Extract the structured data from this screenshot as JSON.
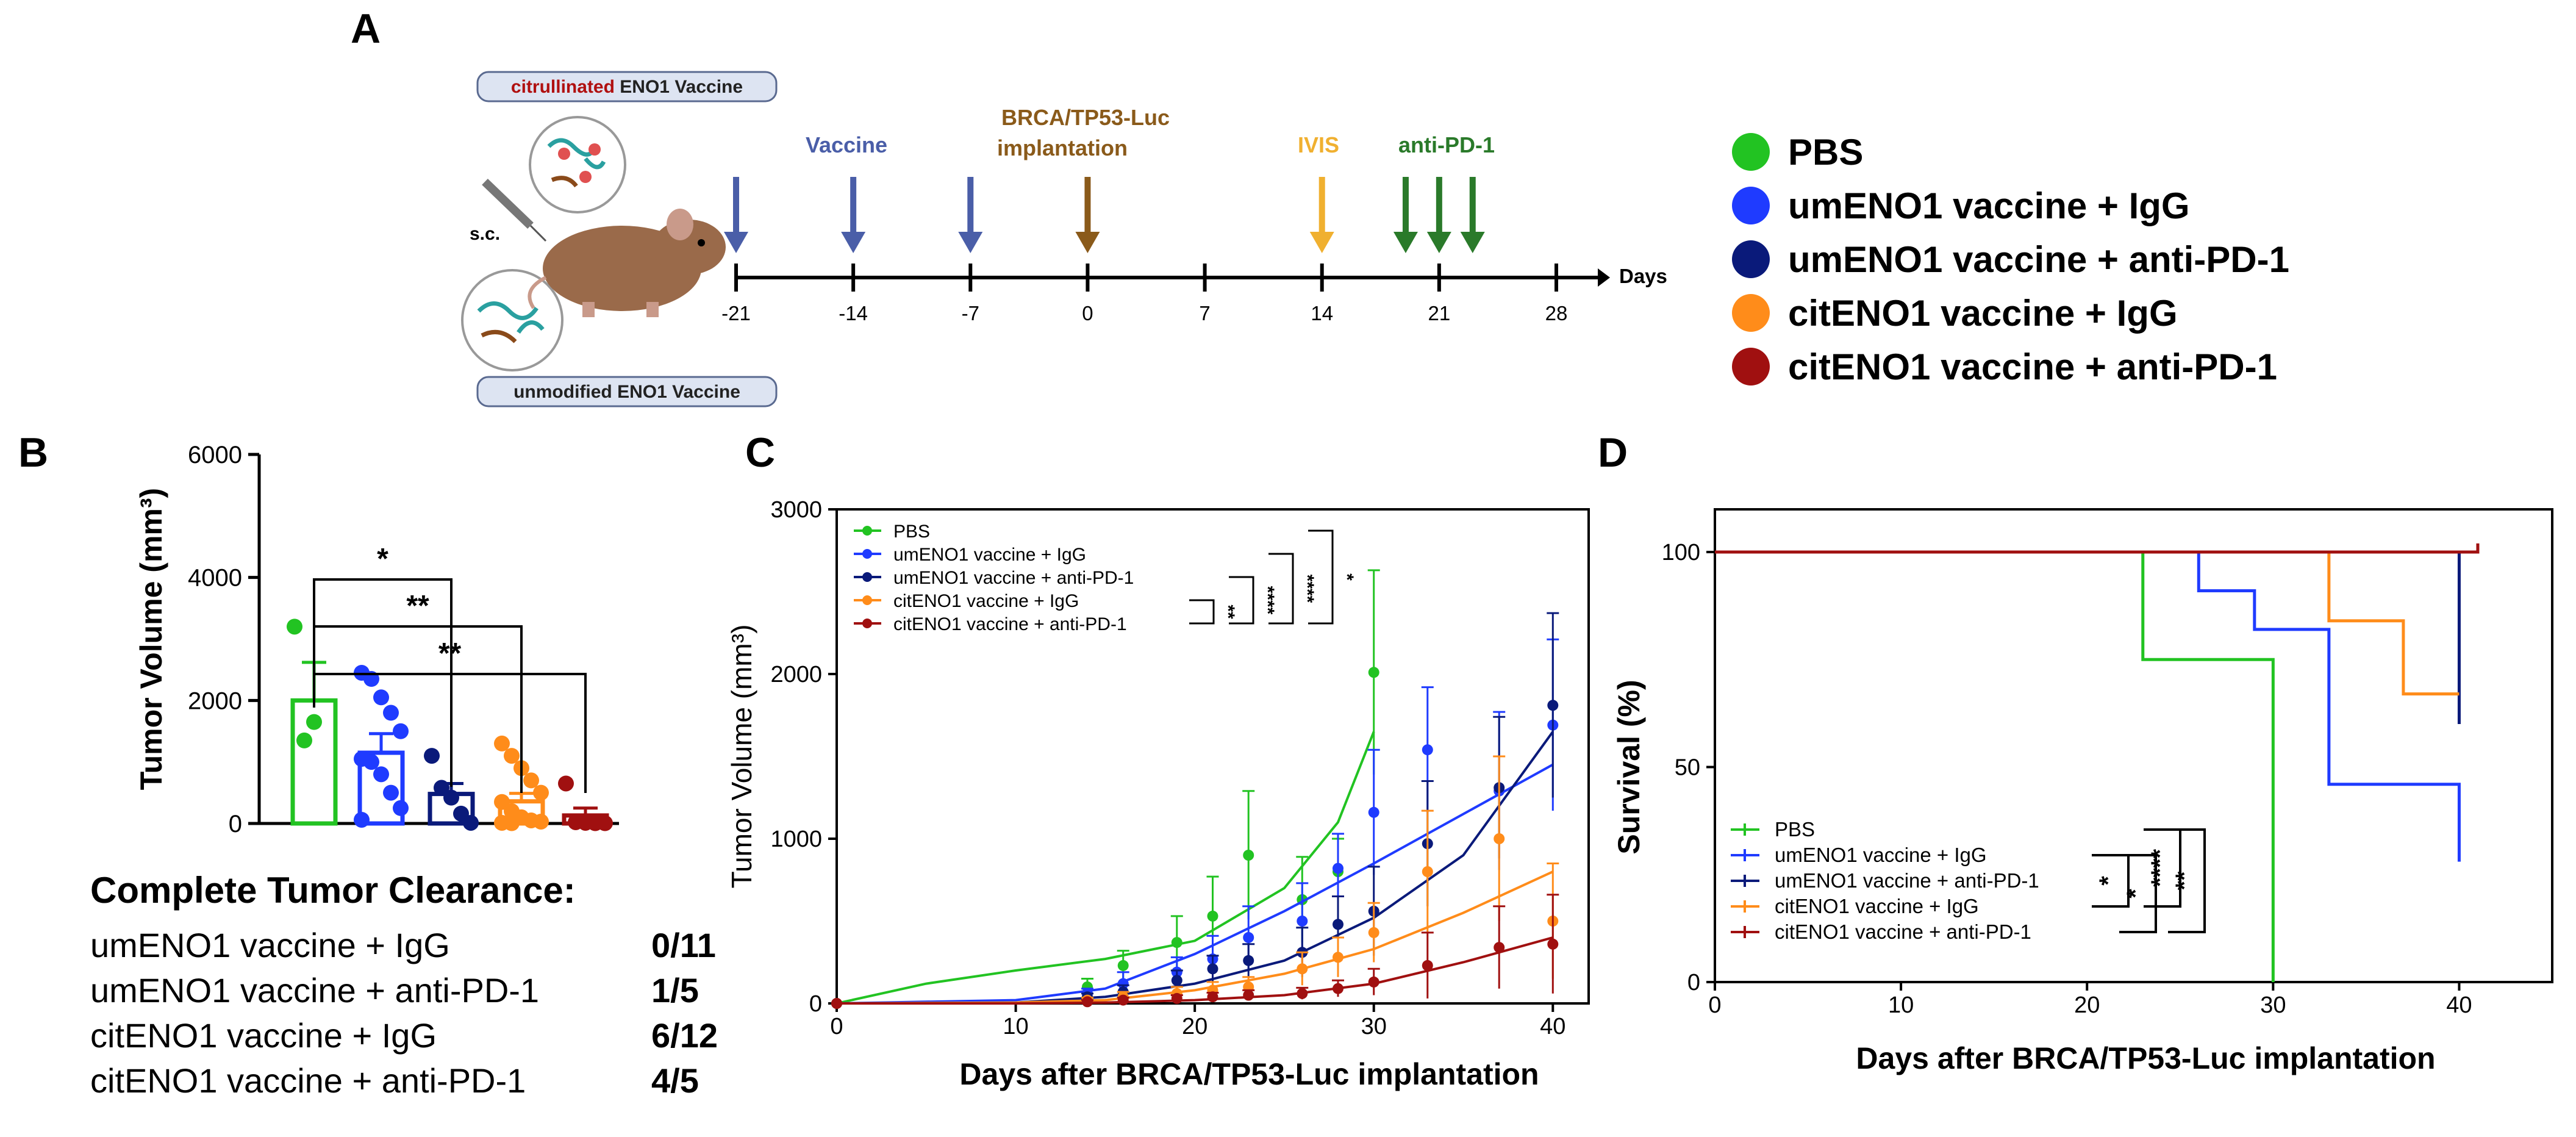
{
  "panel_labels": {
    "a": "A",
    "b": "B",
    "c": "C",
    "d": "D"
  },
  "panel_a": {
    "badge_top_prefix": "citrullinated",
    "badge_top_suffix": " ENO1 Vaccine",
    "badge_bottom": "unmodified ENO1 Vaccine",
    "route": "s.c.",
    "event_vaccine": "Vaccine",
    "event_implant_line1": "BRCA/TP53-Luc",
    "event_implant_line2": "implantation",
    "event_ivis": "IVIS",
    "event_antipd1": "anti-PD-1",
    "axis_unit": "Days",
    "ticks": [
      "-21",
      "-14",
      "-7",
      "0",
      "7",
      "14",
      "21",
      "28"
    ],
    "legend": [
      {
        "label": "PBS",
        "color": "#22c322"
      },
      {
        "label": "umENO1 vaccine + IgG",
        "color": "#1f3bff"
      },
      {
        "label": "umENO1 vaccine + anti-PD-1",
        "color": "#0a1a7a"
      },
      {
        "label": "citENO1 vaccine + IgG",
        "color": "#ff8c1a"
      },
      {
        "label": "citENO1 vaccine + anti-PD-1",
        "color": "#a01010"
      }
    ]
  },
  "clearance": {
    "title": "Complete Tumor Clearance:",
    "rows": [
      {
        "label": "umENO1 vaccine + IgG",
        "value": "0/11"
      },
      {
        "label": "umENO1 vaccine + anti-PD-1",
        "value": "1/5"
      },
      {
        "label": "citENO1 vaccine + IgG",
        "value": "6/12"
      },
      {
        "label": "citENO1 vaccine + anti-PD-1",
        "value": "4/5"
      }
    ]
  },
  "chart_data": [
    {
      "id": "B",
      "type": "bar",
      "ylabel": "Tumor Volume (mm³)",
      "ylim": [
        0,
        6000
      ],
      "yticks": [
        "0",
        "2000",
        "4000",
        "6000"
      ],
      "series": [
        {
          "name": "PBS",
          "color": "#22c322",
          "mean": 2000,
          "sem": 620,
          "points": [
            3200,
            1350,
            1650
          ]
        },
        {
          "name": "umENO1 vaccine + IgG",
          "color": "#1f3bff",
          "mean": 1150,
          "sem": 310,
          "points": [
            2450,
            2350,
            2050,
            1800,
            1500,
            1050,
            1000,
            800,
            500,
            250,
            60
          ]
        },
        {
          "name": "umENO1 vaccine + anti-PD-1",
          "color": "#0a1a7a",
          "mean": 480,
          "sem": 170,
          "points": [
            1100,
            580,
            420,
            160,
            10
          ]
        },
        {
          "name": "citENO1 vaccine + IgG",
          "color": "#ff8c1a",
          "mean": 360,
          "sem": 130,
          "points": [
            1300,
            1100,
            900,
            700,
            500,
            350,
            200,
            100,
            50,
            30,
            10,
            5
          ]
        },
        {
          "name": "citENO1 vaccine + anti-PD-1",
          "color": "#a01010",
          "mean": 130,
          "sem": 120,
          "points": [
            650,
            20,
            10,
            5,
            5
          ]
        }
      ],
      "significance": [
        "*",
        "**",
        "**"
      ]
    },
    {
      "id": "C",
      "type": "line",
      "xlabel": "Days after BRCA/TP53-Luc implantation",
      "ylabel": "Tumor Volume (mm³)",
      "xlim": [
        0,
        42
      ],
      "ylim": [
        0,
        3000
      ],
      "xticks": [
        "0",
        "10",
        "20",
        "30",
        "40"
      ],
      "yticks": [
        "0",
        "1000",
        "2000",
        "3000"
      ],
      "significance": [
        "**",
        "****",
        "****",
        "*"
      ],
      "series": [
        {
          "name": "PBS",
          "color": "#22c322",
          "x": [
            0,
            14,
            16,
            19,
            21,
            23,
            26,
            28,
            30
          ],
          "y": [
            0,
            100,
            230,
            370,
            530,
            900,
            630,
            800,
            2010
          ],
          "err": [
            0,
            50,
            90,
            160,
            240,
            390,
            260,
            200,
            620
          ],
          "fit": [
            [
              0,
              0
            ],
            [
              5,
              120
            ],
            [
              10,
              200
            ],
            [
              15,
              270
            ],
            [
              20,
              380
            ],
            [
              25,
              700
            ],
            [
              28,
              1100
            ],
            [
              30,
              1650
            ]
          ]
        },
        {
          "name": "umENO1 vaccine + IgG",
          "color": "#1f3bff",
          "x": [
            0,
            14,
            16,
            19,
            21,
            23,
            26,
            28,
            30,
            33,
            37,
            40
          ],
          "y": [
            0,
            60,
            120,
            190,
            270,
            400,
            500,
            820,
            1160,
            1540,
            1290,
            1690
          ],
          "err": [
            0,
            30,
            70,
            90,
            140,
            190,
            230,
            210,
            380,
            380,
            480,
            520
          ],
          "fit": [
            [
              0,
              0
            ],
            [
              10,
              20
            ],
            [
              15,
              90
            ],
            [
              20,
              300
            ],
            [
              25,
              560
            ],
            [
              30,
              850
            ],
            [
              35,
              1150
            ],
            [
              40,
              1450
            ]
          ]
        },
        {
          "name": "umENO1 vaccine + anti-PD-1",
          "color": "#0a1a7a",
          "x": [
            0,
            14,
            16,
            19,
            21,
            23,
            26,
            28,
            30,
            33,
            37,
            40
          ],
          "y": [
            0,
            40,
            70,
            140,
            210,
            260,
            310,
            480,
            560,
            970,
            1310,
            1810
          ],
          "err": [
            0,
            20,
            40,
            60,
            80,
            100,
            150,
            170,
            270,
            380,
            430,
            560
          ],
          "fit": [
            [
              0,
              0
            ],
            [
              10,
              5
            ],
            [
              15,
              40
            ],
            [
              20,
              120
            ],
            [
              25,
              260
            ],
            [
              30,
              520
            ],
            [
              35,
              900
            ],
            [
              40,
              1650
            ]
          ]
        },
        {
          "name": "citENO1 vaccine + IgG",
          "color": "#ff8c1a",
          "x": [
            0,
            14,
            16,
            19,
            21,
            23,
            26,
            28,
            30,
            33,
            37,
            40
          ],
          "y": [
            0,
            20,
            40,
            60,
            80,
            100,
            210,
            280,
            430,
            800,
            1000,
            500
          ],
          "err": [
            0,
            15,
            30,
            40,
            50,
            60,
            100,
            120,
            180,
            370,
            500,
            350
          ],
          "fit": [
            [
              0,
              0
            ],
            [
              10,
              5
            ],
            [
              15,
              20
            ],
            [
              20,
              80
            ],
            [
              25,
              180
            ],
            [
              30,
              330
            ],
            [
              35,
              550
            ],
            [
              40,
              800
            ]
          ]
        },
        {
          "name": "citENO1 vaccine + anti-PD-1",
          "color": "#a01010",
          "x": [
            0,
            14,
            16,
            19,
            21,
            23,
            26,
            28,
            30,
            33,
            37,
            40
          ],
          "y": [
            0,
            10,
            20,
            30,
            40,
            50,
            60,
            90,
            130,
            230,
            340,
            360
          ],
          "err": [
            0,
            10,
            15,
            20,
            25,
            30,
            35,
            50,
            80,
            200,
            250,
            300
          ],
          "fit": [
            [
              0,
              0
            ],
            [
              10,
              0
            ],
            [
              15,
              5
            ],
            [
              20,
              20
            ],
            [
              25,
              50
            ],
            [
              30,
              120
            ],
            [
              35,
              250
            ],
            [
              40,
              400
            ]
          ]
        }
      ]
    },
    {
      "id": "D",
      "type": "line",
      "xlabel": "Days after BRCA/TP53-Luc implantation",
      "ylabel": "Survival (%)",
      "xlim": [
        0,
        45
      ],
      "ylim": [
        0,
        105
      ],
      "xticks": [
        "0",
        "10",
        "20",
        "30",
        "40"
      ],
      "yticks": [
        "0",
        "50",
        "100"
      ],
      "significance": [
        "*",
        "*",
        "****",
        "**"
      ],
      "series": [
        {
          "name": "PBS",
          "color": "#22c322",
          "steps": [
            [
              0,
              100
            ],
            [
              23,
              100
            ],
            [
              23,
              75
            ],
            [
              30,
              75
            ],
            [
              30,
              0
            ]
          ]
        },
        {
          "name": "umENO1 vaccine + IgG",
          "color": "#1f3bff",
          "steps": [
            [
              0,
              100
            ],
            [
              26,
              100
            ],
            [
              26,
              91
            ],
            [
              29,
              91
            ],
            [
              29,
              82
            ],
            [
              33,
              82
            ],
            [
              33,
              46
            ],
            [
              40,
              46
            ],
            [
              40,
              28
            ]
          ]
        },
        {
          "name": "umENO1 vaccine + anti-PD-1",
          "color": "#0a1a7a",
          "steps": [
            [
              0,
              100
            ],
            [
              40,
              100
            ],
            [
              40,
              60
            ]
          ]
        },
        {
          "name": "citENO1 vaccine + IgG",
          "color": "#ff8c1a",
          "steps": [
            [
              0,
              100
            ],
            [
              33,
              100
            ],
            [
              33,
              84
            ],
            [
              37,
              84
            ],
            [
              37,
              67
            ],
            [
              40,
              67
            ]
          ]
        },
        {
          "name": "citENO1 vaccine + anti-PD-1",
          "color": "#a01010",
          "steps": [
            [
              0,
              100
            ],
            [
              41,
              100
            ],
            [
              41,
              102
            ]
          ]
        }
      ]
    }
  ]
}
